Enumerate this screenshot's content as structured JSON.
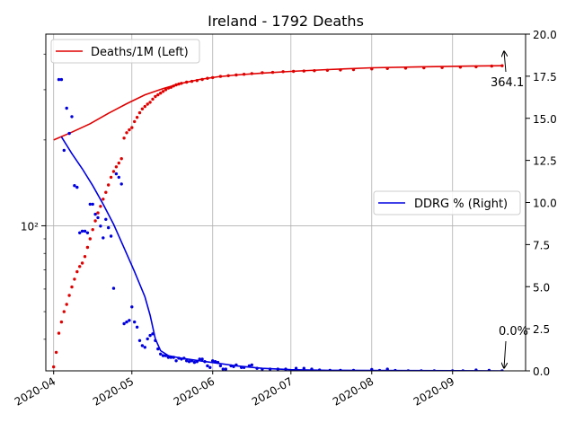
{
  "chart_data": {
    "type": "line",
    "title": "Ireland - 1792 Deaths",
    "x_range": [
      "2020-03-29",
      "2020-09-29"
    ],
    "x_ticks": [
      {
        "date": "2020-04-01",
        "label": "2020-04"
      },
      {
        "date": "2020-05-01",
        "label": "2020-05"
      },
      {
        "date": "2020-06-01",
        "label": "2020-06"
      },
      {
        "date": "2020-07-01",
        "label": "2020-07"
      },
      {
        "date": "2020-08-01",
        "label": "2020-08"
      },
      {
        "date": "2020-09-01",
        "label": "2020-09"
      }
    ],
    "y_left": {
      "scale": "log",
      "range": [
        31,
        470
      ],
      "ticks": [
        {
          "value": 100,
          "label": "10²"
        }
      ]
    },
    "y_right": {
      "scale": "linear",
      "range": [
        0,
        20
      ],
      "ticks": [
        {
          "value": 0,
          "label": "0.0"
        },
        {
          "value": 2.5,
          "label": "2.5"
        },
        {
          "value": 5,
          "label": "5.0"
        },
        {
          "value": 7.5,
          "label": "7.5"
        },
        {
          "value": 10,
          "label": "10.0"
        },
        {
          "value": 12.5,
          "label": "12.5"
        },
        {
          "value": 15,
          "label": "15.0"
        },
        {
          "value": 17.5,
          "label": "17.5"
        },
        {
          "value": 20,
          "label": "20.0"
        }
      ]
    },
    "grid": true,
    "series": [
      {
        "name": "Deaths/1M (Left)",
        "axis": "left",
        "color": "#e00000",
        "legend_position": "upper-left",
        "line": [
          [
            "2020-04-01",
            200
          ],
          [
            "2020-04-08",
            213
          ],
          [
            "2020-04-15",
            228
          ],
          [
            "2020-04-22",
            248
          ],
          [
            "2020-04-29",
            268
          ],
          [
            "2020-05-06",
            288
          ],
          [
            "2020-05-13",
            303
          ],
          [
            "2020-05-20",
            316
          ],
          [
            "2020-05-27",
            326
          ],
          [
            "2020-06-03",
            333
          ],
          [
            "2020-06-10",
            338
          ],
          [
            "2020-06-20",
            343
          ],
          [
            "2020-07-01",
            348
          ],
          [
            "2020-07-15",
            353
          ],
          [
            "2020-08-01",
            358
          ],
          [
            "2020-08-20",
            361
          ],
          [
            "2020-09-08",
            363
          ],
          [
            "2020-09-20",
            364.1
          ]
        ],
        "points": [
          [
            "2020-04-01",
            32
          ],
          [
            "2020-04-02",
            36
          ],
          [
            "2020-04-03",
            42
          ],
          [
            "2020-04-04",
            46
          ],
          [
            "2020-04-05",
            50
          ],
          [
            "2020-04-06",
            53
          ],
          [
            "2020-04-07",
            57
          ],
          [
            "2020-04-08",
            61
          ],
          [
            "2020-04-09",
            65
          ],
          [
            "2020-04-10",
            69
          ],
          [
            "2020-04-11",
            72
          ],
          [
            "2020-04-12",
            74
          ],
          [
            "2020-04-13",
            78
          ],
          [
            "2020-04-14",
            84
          ],
          [
            "2020-04-15",
            90
          ],
          [
            "2020-04-16",
            97
          ],
          [
            "2020-04-17",
            104
          ],
          [
            "2020-04-18",
            111
          ],
          [
            "2020-04-19",
            117
          ],
          [
            "2020-04-20",
            124
          ],
          [
            "2020-04-21",
            131
          ],
          [
            "2020-04-22",
            139
          ],
          [
            "2020-04-23",
            148
          ],
          [
            "2020-04-24",
            155
          ],
          [
            "2020-04-25",
            161
          ],
          [
            "2020-04-26",
            166
          ],
          [
            "2020-04-27",
            172
          ],
          [
            "2020-04-28",
            203
          ],
          [
            "2020-04-29",
            212
          ],
          [
            "2020-04-30",
            217
          ],
          [
            "2020-05-01",
            221
          ],
          [
            "2020-05-02",
            232
          ],
          [
            "2020-05-03",
            240
          ],
          [
            "2020-05-04",
            249
          ],
          [
            "2020-05-05",
            257
          ],
          [
            "2020-05-06",
            262
          ],
          [
            "2020-05-07",
            267
          ],
          [
            "2020-05-08",
            271
          ],
          [
            "2020-05-09",
            278
          ],
          [
            "2020-05-10",
            284
          ],
          [
            "2020-05-11",
            288
          ],
          [
            "2020-05-12",
            292
          ],
          [
            "2020-05-13",
            296
          ],
          [
            "2020-05-14",
            300
          ],
          [
            "2020-05-15",
            304
          ],
          [
            "2020-05-16",
            306
          ],
          [
            "2020-05-17",
            309
          ],
          [
            "2020-05-18",
            312
          ],
          [
            "2020-05-19",
            314
          ],
          [
            "2020-05-20",
            316
          ],
          [
            "2020-05-22",
            319
          ],
          [
            "2020-05-24",
            321
          ],
          [
            "2020-05-26",
            323
          ],
          [
            "2020-05-28",
            326
          ],
          [
            "2020-05-30",
            329
          ],
          [
            "2020-06-01",
            331
          ],
          [
            "2020-06-04",
            334
          ],
          [
            "2020-06-07",
            336
          ],
          [
            "2020-06-10",
            338
          ],
          [
            "2020-06-13",
            340
          ],
          [
            "2020-06-16",
            342
          ],
          [
            "2020-06-20",
            344
          ],
          [
            "2020-06-24",
            345
          ],
          [
            "2020-06-28",
            347
          ],
          [
            "2020-07-02",
            348
          ],
          [
            "2020-07-06",
            349
          ],
          [
            "2020-07-10",
            350
          ],
          [
            "2020-07-15",
            351
          ],
          [
            "2020-07-20",
            352
          ],
          [
            "2020-07-25",
            353
          ],
          [
            "2020-08-01",
            355
          ],
          [
            "2020-08-07",
            356
          ],
          [
            "2020-08-14",
            357
          ],
          [
            "2020-08-21",
            358
          ],
          [
            "2020-08-28",
            359
          ],
          [
            "2020-09-04",
            360
          ],
          [
            "2020-09-10",
            361
          ],
          [
            "2020-09-16",
            363
          ],
          [
            "2020-09-20",
            364.1
          ]
        ],
        "end_label": "364.1"
      },
      {
        "name": "DDRG % (Right)",
        "axis": "right",
        "color": "#0000e0",
        "legend_position": "center-right",
        "line": [
          [
            "2020-04-04",
            13.9
          ],
          [
            "2020-04-08",
            12.9
          ],
          [
            "2020-04-12",
            12.0
          ],
          [
            "2020-04-16",
            11.0
          ],
          [
            "2020-04-20",
            9.9
          ],
          [
            "2020-04-24",
            8.7
          ],
          [
            "2020-04-28",
            7.3
          ],
          [
            "2020-05-02",
            5.9
          ],
          [
            "2020-05-06",
            4.4
          ],
          [
            "2020-05-08",
            3.3
          ],
          [
            "2020-05-10",
            1.9
          ],
          [
            "2020-05-12",
            1.2
          ],
          [
            "2020-05-15",
            0.9
          ],
          [
            "2020-05-20",
            0.75
          ],
          [
            "2020-05-27",
            0.6
          ],
          [
            "2020-06-03",
            0.45
          ],
          [
            "2020-06-10",
            0.3
          ],
          [
            "2020-06-20",
            0.15
          ],
          [
            "2020-07-01",
            0.07
          ],
          [
            "2020-07-15",
            0.03
          ],
          [
            "2020-08-01",
            0.02
          ],
          [
            "2020-09-20",
            0.0
          ]
        ],
        "points": [
          [
            "2020-04-03",
            17.3
          ],
          [
            "2020-04-04",
            17.3
          ],
          [
            "2020-04-05",
            13.1
          ],
          [
            "2020-04-06",
            15.6
          ],
          [
            "2020-04-07",
            14.1
          ],
          [
            "2020-04-08",
            15.1
          ],
          [
            "2020-04-09",
            11.0
          ],
          [
            "2020-04-10",
            10.9
          ],
          [
            "2020-04-11",
            8.2
          ],
          [
            "2020-04-12",
            8.3
          ],
          [
            "2020-04-13",
            8.3
          ],
          [
            "2020-04-14",
            8.2
          ],
          [
            "2020-04-15",
            9.9
          ],
          [
            "2020-04-16",
            9.9
          ],
          [
            "2020-04-17",
            9.3
          ],
          [
            "2020-04-18",
            9.1
          ],
          [
            "2020-04-19",
            8.6
          ],
          [
            "2020-04-20",
            7.9
          ],
          [
            "2020-04-21",
            9.0
          ],
          [
            "2020-04-22",
            8.5
          ],
          [
            "2020-04-23",
            8.0
          ],
          [
            "2020-04-24",
            4.9
          ],
          [
            "2020-04-25",
            11.7
          ],
          [
            "2020-04-26",
            11.5
          ],
          [
            "2020-04-27",
            11.1
          ],
          [
            "2020-04-28",
            2.8
          ],
          [
            "2020-04-29",
            2.9
          ],
          [
            "2020-04-30",
            3.0
          ],
          [
            "2020-05-01",
            3.8
          ],
          [
            "2020-05-02",
            2.9
          ],
          [
            "2020-05-03",
            2.6
          ],
          [
            "2020-05-04",
            1.8
          ],
          [
            "2020-05-05",
            1.5
          ],
          [
            "2020-05-06",
            1.4
          ],
          [
            "2020-05-07",
            1.9
          ],
          [
            "2020-05-08",
            2.1
          ],
          [
            "2020-05-09",
            2.2
          ],
          [
            "2020-05-10",
            1.8
          ],
          [
            "2020-05-11",
            1.3
          ],
          [
            "2020-05-12",
            1.0
          ],
          [
            "2020-05-13",
            0.9
          ],
          [
            "2020-05-14",
            0.9
          ],
          [
            "2020-05-15",
            0.8
          ],
          [
            "2020-05-16",
            0.8
          ],
          [
            "2020-05-17",
            0.8
          ],
          [
            "2020-05-18",
            0.6
          ],
          [
            "2020-05-19",
            0.75
          ],
          [
            "2020-05-20",
            0.7
          ],
          [
            "2020-05-21",
            0.75
          ],
          [
            "2020-05-22",
            0.6
          ],
          [
            "2020-05-23",
            0.55
          ],
          [
            "2020-05-24",
            0.6
          ],
          [
            "2020-05-25",
            0.5
          ],
          [
            "2020-05-26",
            0.55
          ],
          [
            "2020-05-27",
            0.7
          ],
          [
            "2020-05-28",
            0.7
          ],
          [
            "2020-05-29",
            0.55
          ],
          [
            "2020-05-30",
            0.3
          ],
          [
            "2020-05-31",
            0.2
          ],
          [
            "2020-06-01",
            0.6
          ],
          [
            "2020-06-02",
            0.55
          ],
          [
            "2020-06-03",
            0.5
          ],
          [
            "2020-06-04",
            0.3
          ],
          [
            "2020-06-05",
            0.1
          ],
          [
            "2020-06-06",
            0.1
          ],
          [
            "2020-06-08",
            0.3
          ],
          [
            "2020-06-09",
            0.25
          ],
          [
            "2020-06-10",
            0.35
          ],
          [
            "2020-06-12",
            0.2
          ],
          [
            "2020-06-13",
            0.2
          ],
          [
            "2020-06-15",
            0.3
          ],
          [
            "2020-06-16",
            0.35
          ],
          [
            "2020-06-18",
            0.15
          ],
          [
            "2020-06-20",
            0.1
          ],
          [
            "2020-06-23",
            0.1
          ],
          [
            "2020-06-26",
            0.1
          ],
          [
            "2020-06-29",
            0.1
          ],
          [
            "2020-07-03",
            0.15
          ],
          [
            "2020-07-06",
            0.15
          ],
          [
            "2020-07-09",
            0.1
          ],
          [
            "2020-07-12",
            0.05
          ],
          [
            "2020-07-16",
            0.03
          ],
          [
            "2020-07-20",
            0.03
          ],
          [
            "2020-07-25",
            0.03
          ],
          [
            "2020-08-01",
            0.08
          ],
          [
            "2020-08-04",
            0.02
          ],
          [
            "2020-08-07",
            0.1
          ],
          [
            "2020-08-10",
            0.02
          ],
          [
            "2020-08-15",
            0.0
          ],
          [
            "2020-08-20",
            0.0
          ],
          [
            "2020-08-25",
            0.0
          ],
          [
            "2020-09-01",
            0.0
          ],
          [
            "2020-09-05",
            0.0
          ],
          [
            "2020-09-10",
            0.05
          ],
          [
            "2020-09-15",
            0.03
          ],
          [
            "2020-09-20",
            0.0
          ]
        ],
        "end_label": "0.0%"
      }
    ]
  }
}
